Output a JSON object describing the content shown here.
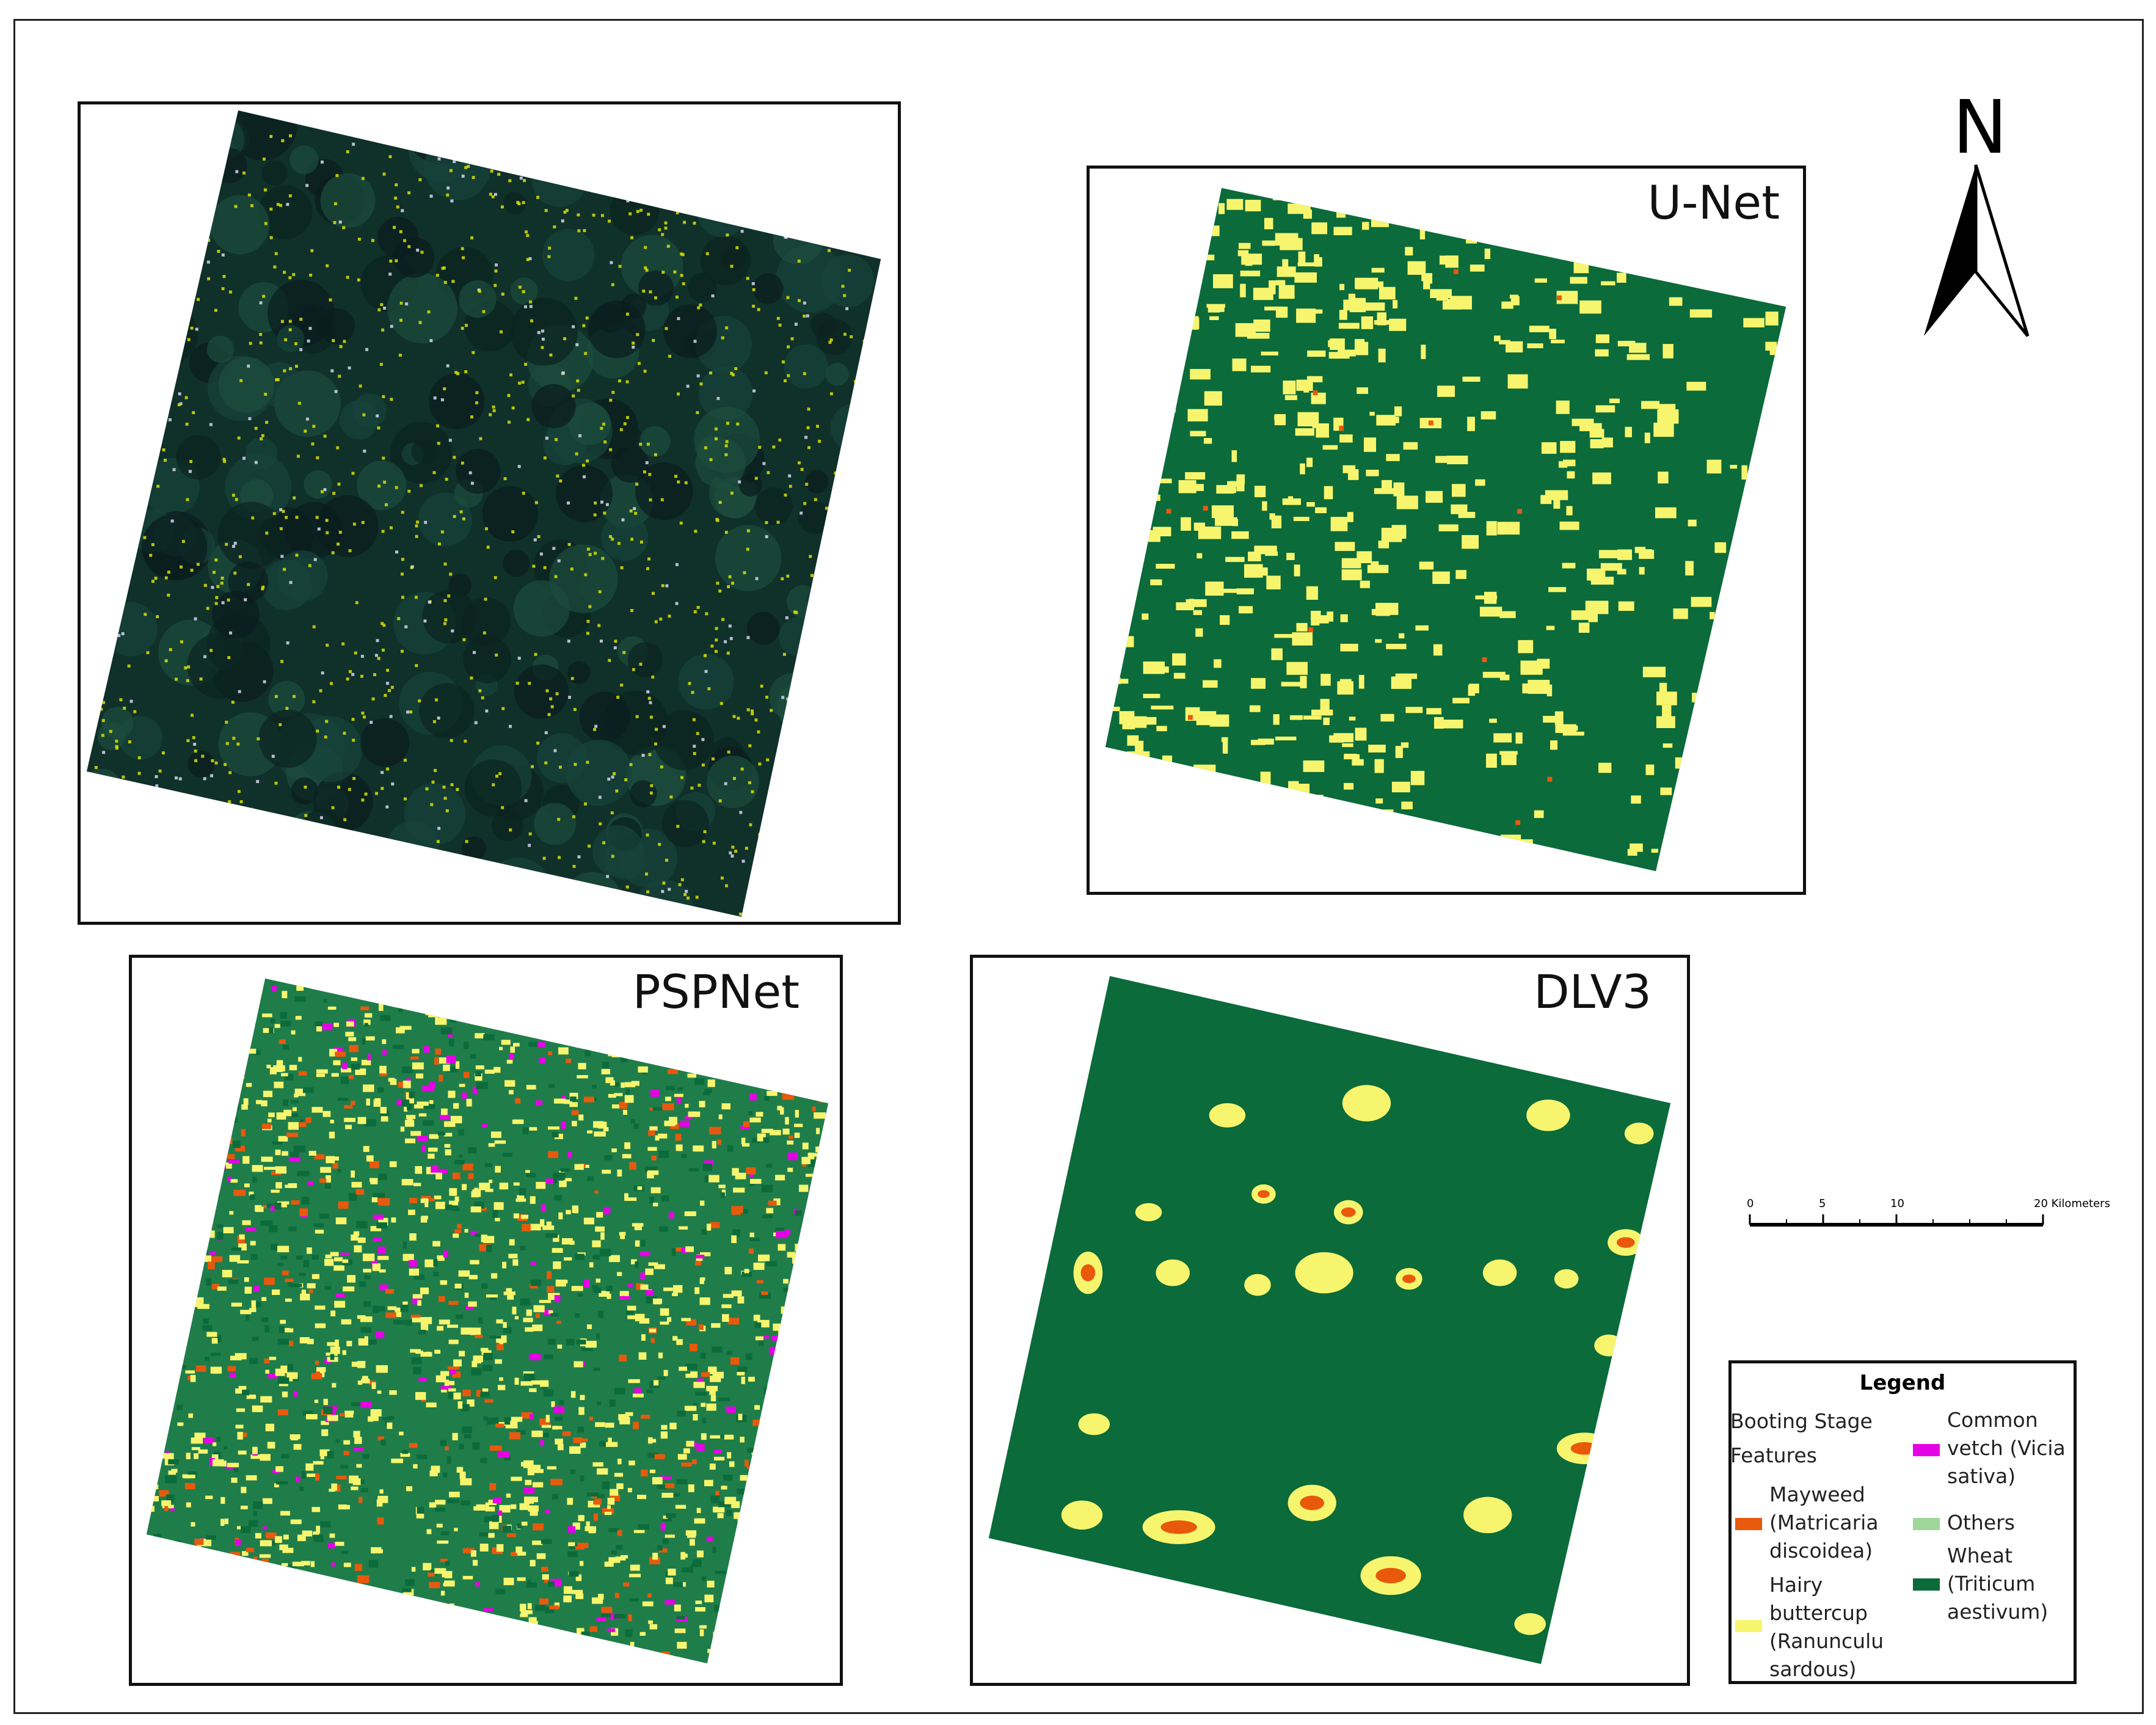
{
  "panels": {
    "rgb": {
      "title": ""
    },
    "unet": {
      "title": "U-Net"
    },
    "pspnet": {
      "title": "PSPNet"
    },
    "dlv3": {
      "title": "DLV3"
    }
  },
  "north_arrow": {
    "label": "N"
  },
  "scale_bar": {
    "ticks": [
      "0",
      "5",
      "10",
      "20 Kilometers"
    ]
  },
  "legend": {
    "title": "Legend",
    "group_label_line1": "Booting Stage",
    "group_label_line2": "Features",
    "items": [
      {
        "label": "Mayweed (Matricaria discoidea)",
        "lines": [
          "Mayweed",
          "(Matricaria",
          "discoidea)"
        ],
        "color": "#e8590c"
      },
      {
        "label": "Hairy buttercup (Ranunculu sardous)",
        "lines": [
          "Hairy",
          "buttercup",
          "(Ranunculu",
          "sardous)"
        ],
        "color": "#f7f56e"
      },
      {
        "label": "Common vetch (Vicia sativa)",
        "lines": [
          "Common",
          "vetch (Vicia",
          "sativa)"
        ],
        "color": "#e600e6"
      },
      {
        "label": "Others",
        "lines": [
          "Others"
        ],
        "color": "#9fd69a"
      },
      {
        "label": "Wheat (Triticum aestivum)",
        "lines": [
          "Wheat",
          "(Triticum",
          "aestivum)"
        ],
        "color": "#0b6b3a"
      }
    ]
  },
  "colors": {
    "wheat": "#0b6b3a",
    "buttercup": "#f7f56e",
    "mayweed": "#e8590c",
    "vetch": "#e600e6",
    "others": "#9fd69a",
    "rgb_dark": "#0f2a26"
  }
}
